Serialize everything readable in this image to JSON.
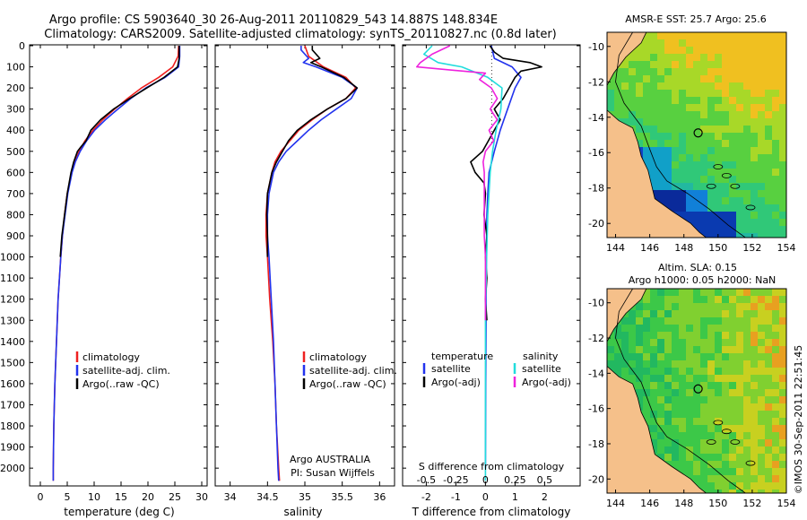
{
  "header": {
    "line1": "Argo profile: CS 5903640_30 26-Aug-2011 20110829_543 14.887S 148.834E",
    "line2": "Climatology: CARS2009. Satellite-adjusted climatology: synTS_20110827.nc (0.8d later)"
  },
  "colors": {
    "red": "#ee2020",
    "blue": "#2233ee",
    "black": "#000000",
    "cyan": "#22dddd",
    "magenta": "#ee22dd",
    "land": "#f5c08a"
  },
  "depth_axis": {
    "ylim": [
      2080,
      0
    ],
    "ticks": [
      0,
      100,
      200,
      300,
      400,
      500,
      600,
      700,
      800,
      900,
      1000,
      1100,
      1200,
      1300,
      1400,
      1500,
      1600,
      1700,
      1800,
      1900,
      2000
    ]
  },
  "chart_data": [
    {
      "type": "line",
      "id": "temperature",
      "xlabel": "temperature (deg C)",
      "xlim": [
        -2,
        31
      ],
      "xticks": [
        0,
        5,
        10,
        15,
        20,
        25,
        30
      ],
      "legend": {
        "placement": "lower-left",
        "entries": [
          "climatology",
          "satellite-adj. clim.",
          "Argo(..raw -QC)"
        ]
      },
      "series": [
        {
          "name": "climatology",
          "color": "red",
          "depth": [
            0,
            50,
            100,
            150,
            200,
            250,
            300,
            350,
            400,
            450,
            500,
            550,
            600,
            700,
            800,
            900,
            1000,
            1200,
            1400,
            1600,
            1800,
            2000,
            2060
          ],
          "values": [
            25.7,
            25.6,
            24.6,
            22.0,
            18.8,
            16.2,
            13.8,
            11.6,
            9.8,
            8.3,
            7.2,
            6.4,
            5.8,
            5.0,
            4.5,
            4.1,
            3.8,
            3.3,
            3.0,
            2.7,
            2.5,
            2.4,
            2.4
          ]
        },
        {
          "name": "satellite-adj. clim.",
          "color": "blue",
          "depth": [
            0,
            50,
            100,
            150,
            200,
            250,
            300,
            350,
            400,
            450,
            500,
            550,
            600,
            700,
            800,
            900,
            1000,
            1200,
            1400,
            1600,
            1800,
            2000,
            2060
          ],
          "values": [
            25.9,
            25.9,
            25.7,
            23.2,
            19.6,
            16.8,
            14.4,
            12.1,
            10.1,
            8.6,
            7.4,
            6.5,
            5.9,
            5.1,
            4.6,
            4.1,
            3.8,
            3.3,
            3.0,
            2.7,
            2.5,
            2.4,
            2.4
          ]
        },
        {
          "name": "Argo(..raw -QC)",
          "color": "black",
          "depth": [
            0,
            20,
            60,
            100,
            150,
            200,
            250,
            300,
            350,
            400,
            450,
            480,
            500,
            550,
            600,
            700,
            800,
            900,
            1000
          ],
          "values": [
            25.8,
            25.8,
            25.8,
            25.5,
            23.0,
            19.8,
            16.6,
            13.6,
            11.2,
            9.4,
            8.5,
            7.5,
            6.9,
            6.2,
            5.7,
            5.0,
            4.5,
            4.0,
            3.7
          ]
        }
      ]
    },
    {
      "type": "line",
      "id": "salinity",
      "xlabel": "salinity",
      "xlim": [
        33.8,
        36.2
      ],
      "xticks": [
        34,
        34.5,
        35,
        35.5,
        36
      ],
      "xticklabels": [
        "34",
        "34.5",
        "35",
        "35.5",
        "36"
      ],
      "legend": {
        "placement": "lower-left",
        "entries": [
          "climatology",
          "satellite-adj. clim.",
          "Argo(..raw -QC)"
        ]
      },
      "annotation": [
        "Argo AUSTRALIA",
        "PI: Susan Wijffels"
      ],
      "series": [
        {
          "name": "climatology",
          "color": "red",
          "depth": [
            0,
            50,
            100,
            150,
            200,
            250,
            300,
            350,
            400,
            450,
            500,
            550,
            600,
            700,
            800,
            900,
            1000,
            1200,
            1400,
            1600,
            1800,
            2000,
            2060
          ],
          "values": [
            35.0,
            35.05,
            35.25,
            35.55,
            35.68,
            35.55,
            35.3,
            35.1,
            34.92,
            34.8,
            34.68,
            34.6,
            34.56,
            34.5,
            34.48,
            34.48,
            34.5,
            34.53,
            34.57,
            34.6,
            34.62,
            34.65,
            34.66
          ]
        },
        {
          "name": "satellite-adj. clim.",
          "color": "blue",
          "depth": [
            0,
            20,
            60,
            80,
            100,
            150,
            200,
            250,
            300,
            350,
            400,
            450,
            500,
            550,
            600,
            700,
            800,
            900,
            1000,
            1200,
            1400,
            1600,
            1800,
            2000,
            2060
          ],
          "values": [
            34.95,
            34.95,
            35.05,
            34.98,
            35.15,
            35.5,
            35.7,
            35.62,
            35.42,
            35.22,
            35.05,
            34.9,
            34.75,
            34.65,
            34.58,
            34.52,
            34.5,
            34.5,
            34.52,
            34.55,
            34.58,
            34.6,
            34.62,
            34.64,
            34.65
          ]
        },
        {
          "name": "Argo(..raw -QC)",
          "color": "black",
          "depth": [
            0,
            20,
            60,
            80,
            100,
            150,
            200,
            250,
            300,
            350,
            400,
            450,
            500,
            550,
            600,
            700,
            800,
            900,
            1000
          ],
          "values": [
            35.1,
            35.1,
            35.2,
            35.08,
            35.22,
            35.52,
            35.7,
            35.55,
            35.3,
            35.08,
            34.9,
            34.78,
            34.7,
            34.62,
            34.56,
            34.5,
            34.49,
            34.5,
            34.5
          ]
        }
      ]
    },
    {
      "type": "line",
      "id": "differences",
      "xlabel": "T difference from climatology",
      "xlabel_top": "S difference from climatology",
      "xlim": [
        -2.8,
        3.2
      ],
      "xticks": [
        -2,
        -1,
        0,
        1,
        2
      ],
      "xticklabels": [
        "-2",
        "-1",
        "0",
        "1",
        "2"
      ],
      "s_ticklabels": [
        "-0.5",
        "-0.25",
        "0",
        "0.25",
        "0.5"
      ],
      "legend": {
        "placement": "lower-middle",
        "temperature_title": "temperature",
        "salinity_title": "salinity",
        "entries": [
          "satellite",
          "Argo(-adj)",
          "satellite",
          "Argo(-adj)"
        ]
      },
      "series": [
        {
          "name": "T satellite",
          "color": "blue",
          "depth": [
            0,
            30,
            60,
            100,
            150,
            200,
            300,
            400,
            500,
            600,
            700,
            800,
            1000,
            1300,
            1600,
            2000
          ],
          "values": [
            0.2,
            0.25,
            0.3,
            0.9,
            1.2,
            1.0,
            0.75,
            0.5,
            0.3,
            0.12,
            0.08,
            0.05,
            0.03,
            0.02,
            0.01,
            0.0
          ]
        },
        {
          "name": "T Argo(-adj)",
          "color": "black",
          "depth": [
            0,
            30,
            60,
            80,
            100,
            120,
            150,
            200,
            250,
            300,
            350,
            400,
            450,
            500,
            550,
            600,
            650,
            700,
            800,
            900,
            1000,
            1100,
            1200,
            1300
          ],
          "values": [
            0.15,
            0.3,
            0.6,
            1.5,
            1.9,
            1.2,
            1.0,
            0.8,
            0.6,
            0.3,
            0.5,
            0.3,
            0.1,
            -0.1,
            -0.5,
            -0.35,
            -0.05,
            0.0,
            -0.05,
            0.05,
            0.0,
            0.05,
            0.0,
            0.05
          ]
        },
        {
          "name": "S satellite",
          "color": "cyan",
          "depth": [
            0,
            40,
            80,
            100,
            150,
            200,
            300,
            400,
            500,
            600,
            800,
            1000,
            1300,
            1600,
            2000,
            2060
          ],
          "values": [
            -0.45,
            -0.52,
            -0.4,
            -0.2,
            0.02,
            0.14,
            0.13,
            0.09,
            0.06,
            0.04,
            0.02,
            0.01,
            0.0,
            0.0,
            0.0,
            0.0
          ]
        },
        {
          "name": "S Argo(-adj)",
          "color": "magenta",
          "depth": [
            0,
            40,
            80,
            100,
            130,
            160,
            200,
            250,
            300,
            350,
            400,
            450,
            500,
            550,
            600,
            700,
            800,
            900,
            1000,
            1200,
            1300
          ],
          "values": [
            -0.3,
            -0.45,
            -0.55,
            -0.58,
            0.0,
            -0.05,
            0.05,
            0.1,
            0.04,
            0.1,
            0.03,
            0.07,
            0.0,
            -0.02,
            -0.01,
            -0.01,
            -0.01,
            -0.01,
            0.0,
            0.0,
            0.0
          ]
        }
      ]
    },
    {
      "type": "heatmap",
      "id": "sst_map",
      "title": "AMSR-E SST: 25.7 Argo: 25.6",
      "xticks": [
        144,
        146,
        148,
        150,
        152,
        154
      ],
      "yticks": [
        -10,
        -12,
        -14,
        -16,
        -18,
        -20
      ],
      "xlim": [
        143.5,
        154
      ],
      "ylim": [
        -20.8,
        -9.2
      ],
      "argo_position": [
        148.834,
        -14.887
      ]
    },
    {
      "type": "heatmap",
      "id": "sla_map",
      "title_line1": "Altim. SLA: 0.15",
      "title_line2": "Argo h1000: 0.05 h2000: NaN",
      "xticks": [
        144,
        146,
        148,
        150,
        152,
        154
      ],
      "yticks": [
        -10,
        -12,
        -14,
        -16,
        -18,
        -20
      ],
      "xlim": [
        143.5,
        154
      ],
      "ylim": [
        -20.8,
        -9.2
      ],
      "argo_position": [
        148.834,
        -14.887
      ]
    }
  ],
  "footer": {
    "credit": "©IMOS 30-Sep-2011 22:51:45"
  }
}
